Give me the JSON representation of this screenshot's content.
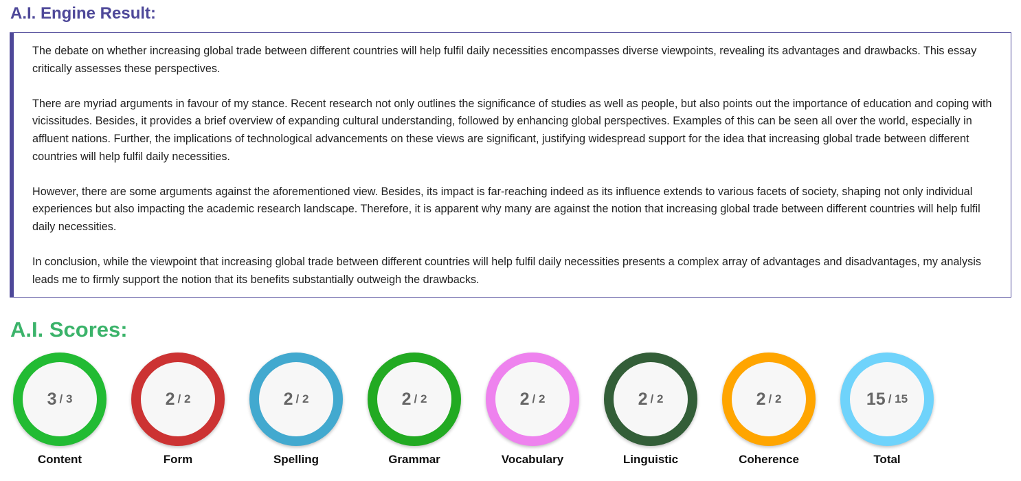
{
  "engine_title": "A.I. Engine Result:",
  "essay": [
    "The debate on whether increasing global trade between different countries will help fulfil daily necessities encompasses diverse viewpoints, revealing its advantages and drawbacks. This essay critically assesses these perspectives.",
    "There are myriad arguments in favour of my stance. Recent research not only outlines the significance of studies as well as people, but also points out the importance of education and coping with vicissitudes. Besides, it provides a brief overview of expanding cultural understanding, followed by enhancing global perspectives. Examples of this can be seen all over the world, especially in affluent nations. Further, the implications of technological advancements on these views are significant, justifying widespread support for the idea that increasing global trade between different countries will help fulfil daily necessities.",
    "However, there are some arguments against the aforementioned view. Besides, its impact is far-reaching indeed as its influence extends to various facets of society, shaping not only individual experiences but also impacting the academic research landscape. Therefore, it is apparent why many are against the notion that increasing global trade between different countries will help fulfil daily necessities.",
    "In conclusion, while the viewpoint that increasing global trade between different countries will help fulfil daily necessities presents a complex array of advantages and disadvantages, my analysis leads me to firmly support the notion that its benefits substantially outweigh the drawbacks."
  ],
  "scores_title": "A.I. Scores:",
  "scores": [
    {
      "label": "Content",
      "score": "3",
      "max": "/ 3",
      "color": "#22bb33"
    },
    {
      "label": "Form",
      "score": "2",
      "max": "/ 2",
      "color": "#cc3333"
    },
    {
      "label": "Spelling",
      "score": "2",
      "max": "/ 2",
      "color": "#42a9cf"
    },
    {
      "label": "Grammar",
      "score": "2",
      "max": "/ 2",
      "color": "#22aa22"
    },
    {
      "label": "Vocabulary",
      "score": "2",
      "max": "/ 2",
      "color": "#ee82ee"
    },
    {
      "label": "Linguistic",
      "score": "2",
      "max": "/ 2",
      "color": "#335e38"
    },
    {
      "label": "Coherence",
      "score": "2",
      "max": "/ 2",
      "color": "#ffa500"
    },
    {
      "label": "Total",
      "score": "15",
      "max": "/ 15",
      "color": "#6fd3fb"
    }
  ]
}
